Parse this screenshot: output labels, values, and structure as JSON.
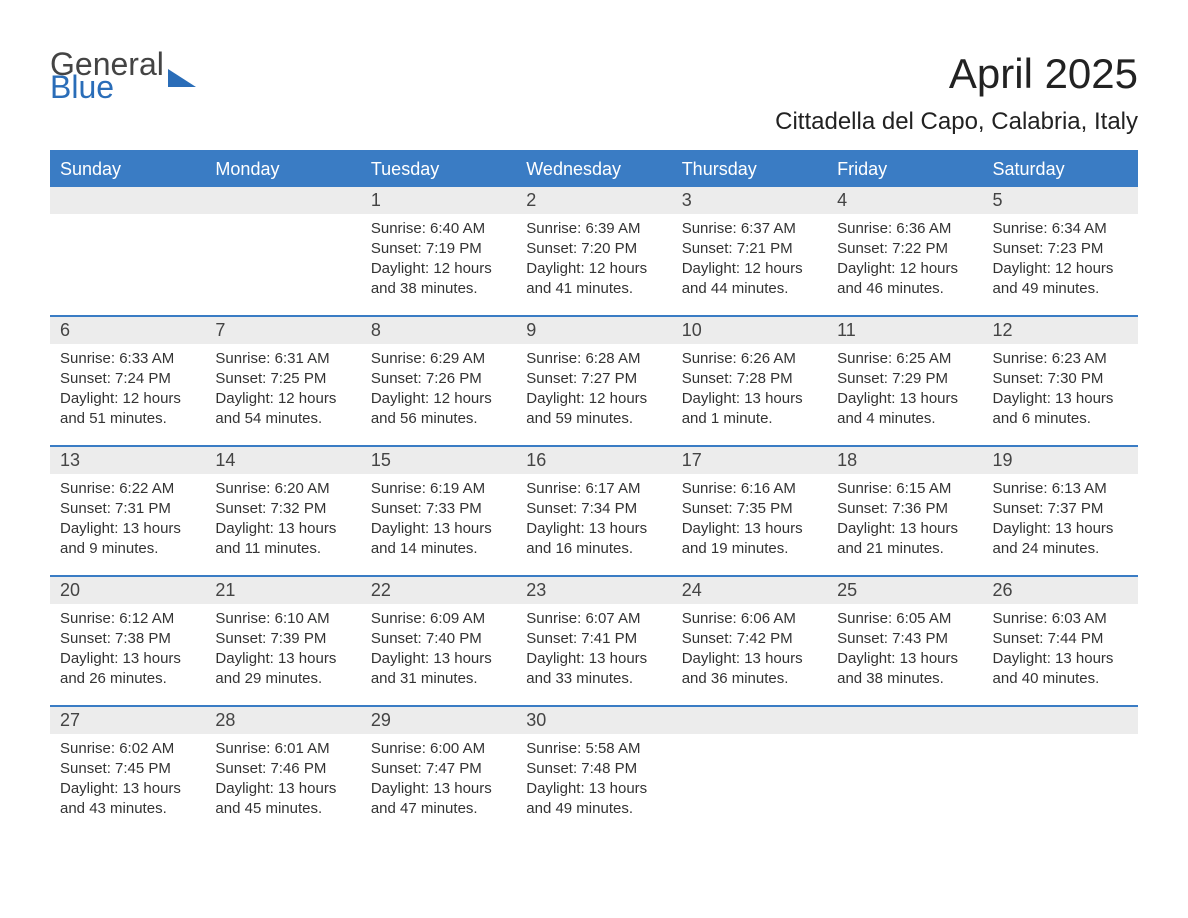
{
  "logo": {
    "text1": "General",
    "text2": "Blue"
  },
  "title": "April 2025",
  "subtitle": "Cittadella del Capo, Calabria, Italy",
  "colors": {
    "header_bg": "#3a7cc4",
    "header_text": "#ffffff",
    "daynum_bg": "#ececec",
    "border": "#3a7cc4",
    "body_text": "#333333",
    "title_text": "#222222",
    "logo_blue": "#2a6db8",
    "logo_gray": "#444444",
    "page_bg": "#ffffff"
  },
  "fonts": {
    "title_pt": 42,
    "subtitle_pt": 24,
    "weekday_pt": 18,
    "daynum_pt": 18,
    "body_pt": 15
  },
  "weekdays": [
    "Sunday",
    "Monday",
    "Tuesday",
    "Wednesday",
    "Thursday",
    "Friday",
    "Saturday"
  ],
  "weeks": [
    [
      null,
      null,
      {
        "n": "1",
        "sunrise": "6:40 AM",
        "sunset": "7:19 PM",
        "daylight": "12 hours and 38 minutes."
      },
      {
        "n": "2",
        "sunrise": "6:39 AM",
        "sunset": "7:20 PM",
        "daylight": "12 hours and 41 minutes."
      },
      {
        "n": "3",
        "sunrise": "6:37 AM",
        "sunset": "7:21 PM",
        "daylight": "12 hours and 44 minutes."
      },
      {
        "n": "4",
        "sunrise": "6:36 AM",
        "sunset": "7:22 PM",
        "daylight": "12 hours and 46 minutes."
      },
      {
        "n": "5",
        "sunrise": "6:34 AM",
        "sunset": "7:23 PM",
        "daylight": "12 hours and 49 minutes."
      }
    ],
    [
      {
        "n": "6",
        "sunrise": "6:33 AM",
        "sunset": "7:24 PM",
        "daylight": "12 hours and 51 minutes."
      },
      {
        "n": "7",
        "sunrise": "6:31 AM",
        "sunset": "7:25 PM",
        "daylight": "12 hours and 54 minutes."
      },
      {
        "n": "8",
        "sunrise": "6:29 AM",
        "sunset": "7:26 PM",
        "daylight": "12 hours and 56 minutes."
      },
      {
        "n": "9",
        "sunrise": "6:28 AM",
        "sunset": "7:27 PM",
        "daylight": "12 hours and 59 minutes."
      },
      {
        "n": "10",
        "sunrise": "6:26 AM",
        "sunset": "7:28 PM",
        "daylight": "13 hours and 1 minute."
      },
      {
        "n": "11",
        "sunrise": "6:25 AM",
        "sunset": "7:29 PM",
        "daylight": "13 hours and 4 minutes."
      },
      {
        "n": "12",
        "sunrise": "6:23 AM",
        "sunset": "7:30 PM",
        "daylight": "13 hours and 6 minutes."
      }
    ],
    [
      {
        "n": "13",
        "sunrise": "6:22 AM",
        "sunset": "7:31 PM",
        "daylight": "13 hours and 9 minutes."
      },
      {
        "n": "14",
        "sunrise": "6:20 AM",
        "sunset": "7:32 PM",
        "daylight": "13 hours and 11 minutes."
      },
      {
        "n": "15",
        "sunrise": "6:19 AM",
        "sunset": "7:33 PM",
        "daylight": "13 hours and 14 minutes."
      },
      {
        "n": "16",
        "sunrise": "6:17 AM",
        "sunset": "7:34 PM",
        "daylight": "13 hours and 16 minutes."
      },
      {
        "n": "17",
        "sunrise": "6:16 AM",
        "sunset": "7:35 PM",
        "daylight": "13 hours and 19 minutes."
      },
      {
        "n": "18",
        "sunrise": "6:15 AM",
        "sunset": "7:36 PM",
        "daylight": "13 hours and 21 minutes."
      },
      {
        "n": "19",
        "sunrise": "6:13 AM",
        "sunset": "7:37 PM",
        "daylight": "13 hours and 24 minutes."
      }
    ],
    [
      {
        "n": "20",
        "sunrise": "6:12 AM",
        "sunset": "7:38 PM",
        "daylight": "13 hours and 26 minutes."
      },
      {
        "n": "21",
        "sunrise": "6:10 AM",
        "sunset": "7:39 PM",
        "daylight": "13 hours and 29 minutes."
      },
      {
        "n": "22",
        "sunrise": "6:09 AM",
        "sunset": "7:40 PM",
        "daylight": "13 hours and 31 minutes."
      },
      {
        "n": "23",
        "sunrise": "6:07 AM",
        "sunset": "7:41 PM",
        "daylight": "13 hours and 33 minutes."
      },
      {
        "n": "24",
        "sunrise": "6:06 AM",
        "sunset": "7:42 PM",
        "daylight": "13 hours and 36 minutes."
      },
      {
        "n": "25",
        "sunrise": "6:05 AM",
        "sunset": "7:43 PM",
        "daylight": "13 hours and 38 minutes."
      },
      {
        "n": "26",
        "sunrise": "6:03 AM",
        "sunset": "7:44 PM",
        "daylight": "13 hours and 40 minutes."
      }
    ],
    [
      {
        "n": "27",
        "sunrise": "6:02 AM",
        "sunset": "7:45 PM",
        "daylight": "13 hours and 43 minutes."
      },
      {
        "n": "28",
        "sunrise": "6:01 AM",
        "sunset": "7:46 PM",
        "daylight": "13 hours and 45 minutes."
      },
      {
        "n": "29",
        "sunrise": "6:00 AM",
        "sunset": "7:47 PM",
        "daylight": "13 hours and 47 minutes."
      },
      {
        "n": "30",
        "sunrise": "5:58 AM",
        "sunset": "7:48 PM",
        "daylight": "13 hours and 49 minutes."
      },
      null,
      null,
      null
    ]
  ],
  "labels": {
    "sunrise": "Sunrise:",
    "sunset": "Sunset:",
    "daylight": "Daylight:"
  }
}
